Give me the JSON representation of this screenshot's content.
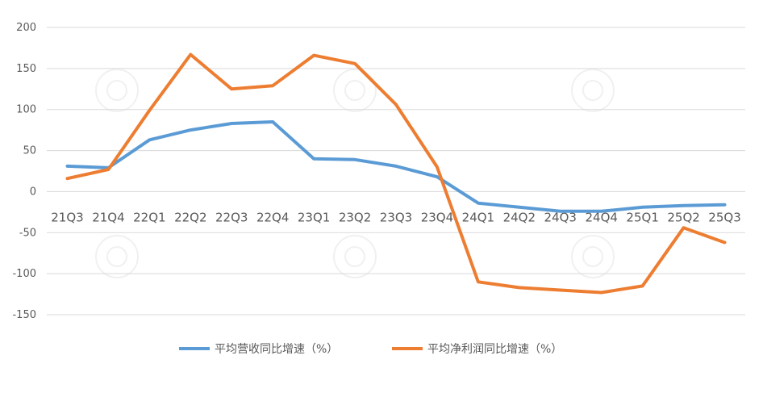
{
  "chart_data": {
    "type": "line",
    "categories": [
      "21Q3",
      "21Q4",
      "22Q1",
      "22Q2",
      "22Q3",
      "22Q4",
      "23Q1",
      "23Q2",
      "23Q3",
      "23Q4",
      "24Q1",
      "24Q2",
      "24Q3",
      "24Q4",
      "25Q1",
      "25Q2",
      "25Q3"
    ],
    "series": [
      {
        "name": "平均营收同比增速（%）",
        "color": "#5b9bd5",
        "values": [
          31,
          29,
          63,
          75,
          83,
          85,
          40,
          39,
          31,
          18,
          -14,
          -19,
          -24,
          -24,
          -19,
          -17,
          -16
        ]
      },
      {
        "name": "平均净利润同比增速（%）",
        "color": "#ed7d31",
        "values": [
          16,
          27,
          99,
          167,
          125,
          129,
          166,
          156,
          106,
          30,
          -110,
          -117,
          -120,
          -123,
          -115,
          -44,
          -62
        ]
      }
    ],
    "y_ticks": [
      "200",
      "150",
      "100",
      "50",
      "0",
      "-50",
      "-100",
      "-150"
    ],
    "ylim": [
      -150,
      200
    ],
    "grid": true,
    "legend_position": "bottom"
  }
}
